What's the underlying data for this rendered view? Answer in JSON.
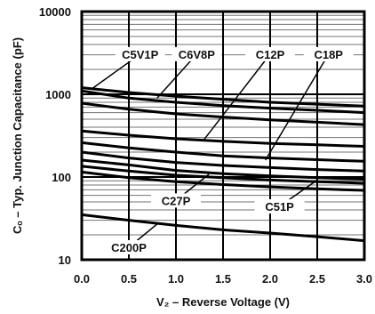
{
  "chart_data": {
    "type": "line",
    "title": "",
    "xlabel": "V₂ – Reverse Voltage (V)",
    "ylabel": "Cₒ – Typ. Junction Capacitance (pF)",
    "xlim": [
      0.0,
      3.0
    ],
    "ylim": [
      10,
      10000
    ],
    "yscale": "log",
    "grid": true,
    "x_ticks": [
      "0.0",
      "0.5",
      "1.0",
      "1.5",
      "2.0",
      "2.5",
      "3.0"
    ],
    "y_ticks": [
      "10",
      "100",
      "1000",
      "10000"
    ],
    "x": [
      0.0,
      0.5,
      1.0,
      1.5,
      2.0,
      2.5,
      3.0
    ],
    "series": [
      {
        "values": [
          1200,
          1050,
          950,
          870,
          800,
          760,
          720
        ]
      },
      {
        "values": [
          1100,
          900,
          800,
          730,
          680,
          640,
          600
        ]
      },
      {
        "values": [
          780,
          660,
          580,
          530,
          490,
          460,
          430
        ]
      },
      {
        "values": [
          360,
          320,
          290,
          270,
          255,
          245,
          235
        ]
      },
      {
        "values": [
          260,
          225,
          200,
          180,
          170,
          162,
          155
        ]
      },
      {
        "values": [
          200,
          170,
          150,
          138,
          130,
          123,
          118
        ]
      },
      {
        "values": [
          160,
          140,
          120,
          110,
          103,
          98,
          94
        ]
      },
      {
        "values": [
          135,
          118,
          105,
          98,
          92,
          88,
          84
        ]
      },
      {
        "values": [
          115,
          98,
          88,
          81,
          76,
          72,
          69
        ]
      },
      {
        "values": [
          35,
          30,
          26,
          23,
          21,
          19,
          17
        ]
      }
    ],
    "annotations": [
      {
        "text": "C5V1P",
        "x": 0.62,
        "y": 2700,
        "point_x": 0.1,
        "point_y": 1150
      },
      {
        "text": "C6V8P",
        "x": 1.22,
        "y": 2700,
        "point_x": 0.8,
        "point_y": 900
      },
      {
        "text": "C12P",
        "x": 2.0,
        "y": 2700,
        "point_x": 1.3,
        "point_y": 285
      },
      {
        "text": "C18P",
        "x": 2.62,
        "y": 2700,
        "point_x": 1.95,
        "point_y": 160
      },
      {
        "text": "C27P",
        "x": 1.0,
        "y": 46,
        "point_x": 1.35,
        "point_y": 108
      },
      {
        "text": "C51P",
        "x": 2.1,
        "y": 39,
        "point_x": 2.5,
        "point_y": 92
      },
      {
        "text": "C200P",
        "x": 0.5,
        "y": 12.5,
        "point_x": 0.8,
        "point_y": 27
      }
    ]
  }
}
